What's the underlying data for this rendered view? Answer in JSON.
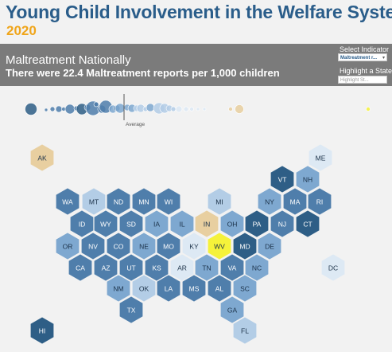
{
  "title": "Young Child Involvement in the Welfare System",
  "year": "2020",
  "banner": {
    "heading": "Maltreatment Nationally",
    "subheading": "There were 22.4 Maltreatment reports per 1,000 children"
  },
  "controls": {
    "select_label": "Select Indicator",
    "select_value": "Maltreatment r...",
    "highlight_label": "Highlight a State",
    "highlight_placeholder": "Highlight St..."
  },
  "average_label": "Average",
  "colors": {
    "dark": "#2e5e86",
    "mid": "#4f7eab",
    "light": "#7ea8d0",
    "pale": "#b3cde6",
    "faint": "#dde9f4",
    "tan": "#e8cfa0",
    "yellow": "#f5f23a"
  },
  "states": [
    {
      "abbr": "AK",
      "shade": "tan"
    },
    {
      "abbr": "ME",
      "shade": "faint"
    },
    {
      "abbr": "VT",
      "shade": "dark"
    },
    {
      "abbr": "NH",
      "shade": "light"
    },
    {
      "abbr": "WA",
      "shade": "mid"
    },
    {
      "abbr": "MT",
      "shade": "pale"
    },
    {
      "abbr": "ND",
      "shade": "mid"
    },
    {
      "abbr": "MN",
      "shade": "mid"
    },
    {
      "abbr": "WI",
      "shade": "mid"
    },
    {
      "abbr": "MI",
      "shade": "pale"
    },
    {
      "abbr": "NY",
      "shade": "light"
    },
    {
      "abbr": "MA",
      "shade": "mid"
    },
    {
      "abbr": "RI",
      "shade": "mid"
    },
    {
      "abbr": "ID",
      "shade": "mid"
    },
    {
      "abbr": "WY",
      "shade": "mid"
    },
    {
      "abbr": "SD",
      "shade": "mid"
    },
    {
      "abbr": "IA",
      "shade": "light"
    },
    {
      "abbr": "IL",
      "shade": "light"
    },
    {
      "abbr": "IN",
      "shade": "tan"
    },
    {
      "abbr": "OH",
      "shade": "light"
    },
    {
      "abbr": "PA",
      "shade": "dark"
    },
    {
      "abbr": "NJ",
      "shade": "mid"
    },
    {
      "abbr": "CT",
      "shade": "dark"
    },
    {
      "abbr": "OR",
      "shade": "light"
    },
    {
      "abbr": "NV",
      "shade": "mid"
    },
    {
      "abbr": "CO",
      "shade": "mid"
    },
    {
      "abbr": "NE",
      "shade": "light"
    },
    {
      "abbr": "MO",
      "shade": "mid"
    },
    {
      "abbr": "KY",
      "shade": "faint"
    },
    {
      "abbr": "WV",
      "shade": "yellow"
    },
    {
      "abbr": "MD",
      "shade": "dark"
    },
    {
      "abbr": "DE",
      "shade": "light"
    },
    {
      "abbr": "CA",
      "shade": "mid"
    },
    {
      "abbr": "AZ",
      "shade": "mid"
    },
    {
      "abbr": "UT",
      "shade": "mid"
    },
    {
      "abbr": "KS",
      "shade": "mid"
    },
    {
      "abbr": "AR",
      "shade": "faint"
    },
    {
      "abbr": "TN",
      "shade": "light"
    },
    {
      "abbr": "VA",
      "shade": "mid"
    },
    {
      "abbr": "NC",
      "shade": "light"
    },
    {
      "abbr": "DC",
      "shade": "faint"
    },
    {
      "abbr": "NM",
      "shade": "light"
    },
    {
      "abbr": "OK",
      "shade": "pale"
    },
    {
      "abbr": "LA",
      "shade": "mid"
    },
    {
      "abbr": "MS",
      "shade": "mid"
    },
    {
      "abbr": "AL",
      "shade": "mid"
    },
    {
      "abbr": "SC",
      "shade": "light"
    },
    {
      "abbr": "TX",
      "shade": "mid"
    },
    {
      "abbr": "GA",
      "shade": "light"
    },
    {
      "abbr": "HI",
      "shade": "dark"
    },
    {
      "abbr": "FL",
      "shade": "pale"
    }
  ]
}
